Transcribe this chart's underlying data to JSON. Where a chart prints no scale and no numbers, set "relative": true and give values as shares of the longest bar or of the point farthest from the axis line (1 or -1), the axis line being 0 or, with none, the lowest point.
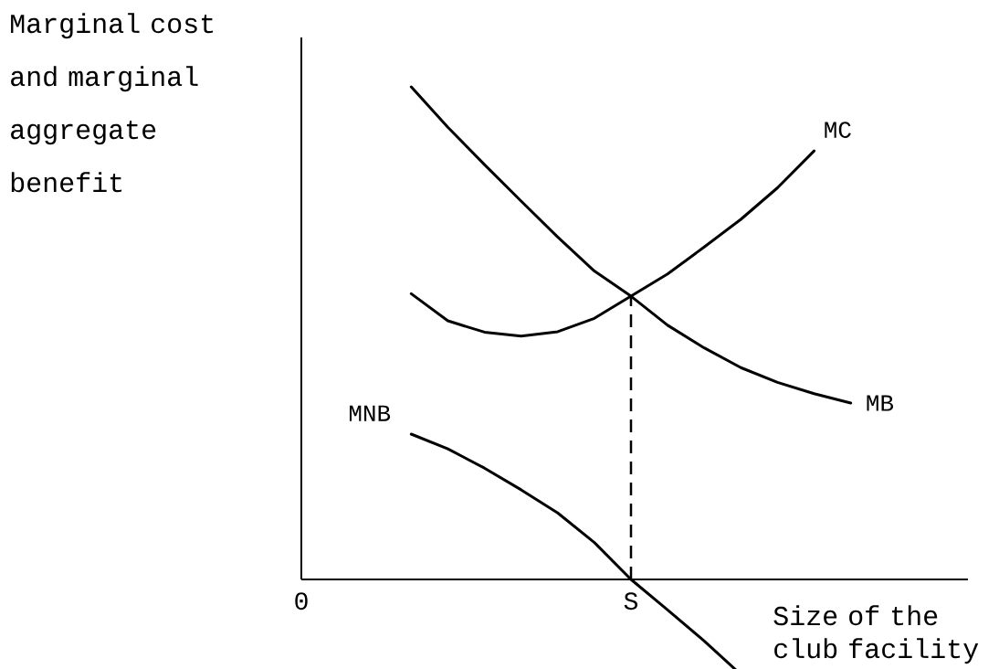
{
  "chart_data": {
    "type": "line",
    "relative": true,
    "line_style": "solid",
    "xlabel": "Size of the club facility",
    "ylabel": "Marginal cost and marginal aggregate benefit",
    "categories": [
      "0",
      null,
      null,
      null,
      null,
      null,
      null,
      null,
      null,
      "S",
      null,
      null,
      null,
      null,
      null,
      null,
      null,
      null,
      null
    ],
    "ref_lines": [
      {
        "axis": "x",
        "value": "S",
        "line_style": "dashed",
        "color": "#000000"
      }
    ],
    "series": [
      {
        "name": "MB",
        "color": "#000000",
        "values": [
          null,
          null,
          null,
          1,
          0.918,
          0.842,
          0.768,
          0.695,
          0.626,
          0.575,
          0.516,
          0.47,
          0.43,
          0.4,
          0.377,
          0.358,
          null,
          null,
          null
        ]
      },
      {
        "name": "MC",
        "color": "#000000",
        "values": [
          null,
          null,
          null,
          0.58,
          0.525,
          0.502,
          0.494,
          0.503,
          0.53,
          0.575,
          0.62,
          0.675,
          0.731,
          0.795,
          0.87,
          null,
          null,
          null,
          null
        ]
      },
      {
        "name": "MNB",
        "color": "#000000",
        "values": [
          null,
          null,
          null,
          0.295,
          0.265,
          0.226,
          0.182,
          0.135,
          0.075,
          0,
          -0.062,
          -0.125,
          -0.193,
          null,
          null,
          null,
          null,
          null,
          null
        ]
      }
    ]
  }
}
